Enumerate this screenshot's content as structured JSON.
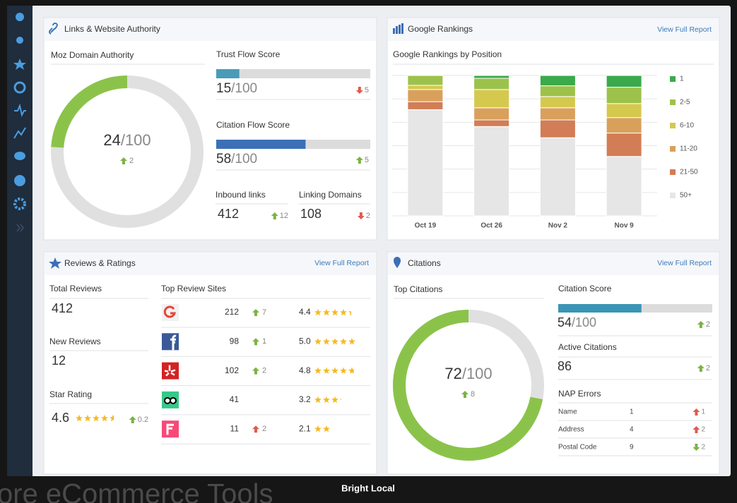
{
  "background_text": "ore eCommerce Tools",
  "caption": "Bright Local",
  "links_panel": {
    "title": "Links & Website Authority",
    "moz": {
      "label": "Moz Domain Authority",
      "score": 24,
      "out_of": "/100",
      "change": 2,
      "trend": "up",
      "color": "#8bc34a"
    },
    "trust_flow": {
      "label": "Trust Flow Score",
      "score": 15,
      "out_of": "/100",
      "change": 5,
      "trend": "down",
      "color": "#4a9bb8"
    },
    "citation_flow": {
      "label": "Citation Flow Score",
      "score": 58,
      "out_of": "/100",
      "change": 5,
      "trend": "up",
      "color": "#3d6fb6"
    },
    "inbound": {
      "label": "Inbound links",
      "value": 412,
      "change": 12,
      "trend": "up"
    },
    "linking": {
      "label": "Linking Domains",
      "value": 108,
      "change": 2,
      "trend": "down"
    }
  },
  "rankings_panel": {
    "title": "Google Rankings",
    "link": "View Full Report",
    "chart_data": {
      "type": "bar",
      "stacked": true,
      "title": "Google Rankings by Position",
      "categories": [
        "Oct 19",
        "Oct 26",
        "Nov 2",
        "Nov 9"
      ],
      "ylim": [
        0,
        30
      ],
      "yticks": [
        0,
        5,
        10,
        15,
        20,
        25,
        30
      ],
      "grid": true,
      "series": [
        {
          "name": "1",
          "color": "#3aaa4a",
          "values": [
            0,
            0.6,
            2.2,
            2.5
          ]
        },
        {
          "name": "2-5",
          "color": "#9dc24c",
          "values": [
            2.1,
            2.4,
            2.3,
            3.5
          ]
        },
        {
          "name": "6-10",
          "color": "#d4c94e",
          "values": [
            0.9,
            3.9,
            2.4,
            3.0
          ]
        },
        {
          "name": "11-20",
          "color": "#d9a05c",
          "values": [
            2.6,
            2.6,
            2.6,
            3.3
          ]
        },
        {
          "name": "21-50",
          "color": "#d27d55",
          "values": [
            1.7,
            1.4,
            3.8,
            5.0
          ]
        },
        {
          "name": "50+",
          "color": "#e6e6e6",
          "values": [
            22.7,
            19.1,
            16.7,
            12.7
          ]
        }
      ]
    }
  },
  "reviews_panel": {
    "title": "Reviews & Ratings",
    "link": "View Full Report",
    "total": {
      "label": "Total Reviews",
      "value": 412
    },
    "new": {
      "label": "New Reviews",
      "value": 12
    },
    "star": {
      "label": "Star Rating",
      "value": 4.6,
      "change": 0.2,
      "trend": "up"
    },
    "sites_label": "Top Review Sites",
    "sites": [
      {
        "logo": "google",
        "count": 212,
        "change": 7,
        "trend": "up",
        "rating": 4.4
      },
      {
        "logo": "facebook",
        "count": 98,
        "change": 1,
        "trend": "up",
        "rating": 5.0,
        "rating_label": "5.0"
      },
      {
        "logo": "yelp",
        "count": 102,
        "change": 2,
        "trend": "up",
        "rating": 4.8
      },
      {
        "logo": "tripadvisor",
        "count": 41,
        "change": null,
        "trend": null,
        "rating": 3.2
      },
      {
        "logo": "foursquare",
        "count": 11,
        "change": 2,
        "trend": "up",
        "trend_color": "#e05a4f",
        "rating": 2.1
      }
    ]
  },
  "citations_panel": {
    "title": "Citations",
    "link": "View Full Report",
    "top": {
      "label": "Top Citations",
      "score": 72,
      "out_of": "/100",
      "change": 8,
      "trend": "up",
      "color": "#8bc34a"
    },
    "citation_score": {
      "label": "Citation Score",
      "score": 54,
      "out_of": "/100",
      "change": 2,
      "trend": "up",
      "color": "#3a95b5"
    },
    "active": {
      "label": "Active Citations",
      "value": 86,
      "change": 2,
      "trend": "up"
    },
    "nap_label": "NAP Errors",
    "nap": [
      {
        "label": "Name",
        "value": 1,
        "change": 1,
        "trend": "up",
        "trend_color": "#e05a4f"
      },
      {
        "label": "Address",
        "value": 4,
        "change": 2,
        "trend": "up",
        "trend_color": "#e05a4f"
      },
      {
        "label": "Postal Code",
        "value": 9,
        "change": 2,
        "trend": "down",
        "trend_color": "#7cb342"
      }
    ]
  }
}
